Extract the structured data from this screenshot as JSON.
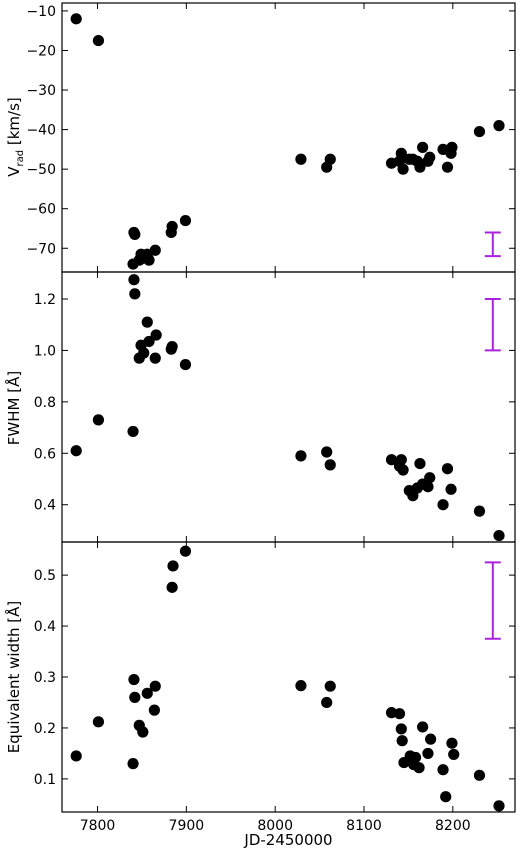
{
  "figure": {
    "xlabel": "JD-2450000",
    "xlim": [
      7760,
      8270
    ],
    "xticks": [
      7800,
      7900,
      8000,
      8100,
      8200
    ],
    "point_color": "#000000",
    "errorbar_color": "#aa22dd"
  },
  "chart_data": [
    {
      "type": "scatter",
      "ylabel": "V",
      "ylabel_sub": "rad",
      "ylabel_unit": " [km/s]",
      "ylim": [
        -76,
        -8
      ],
      "yticks": [
        -70,
        -60,
        -50,
        -40,
        -30,
        -20,
        -10
      ],
      "typical_error": {
        "x": 8245,
        "low": -72,
        "high": -66
      },
      "x": [
        7776,
        7801,
        7840,
        7841,
        7842,
        7847,
        7849,
        7852,
        7856,
        7858,
        7865,
        7883,
        7884,
        7899,
        8029,
        8058,
        8062,
        8131,
        8140,
        8142,
        8144,
        8151,
        8155,
        8160,
        8163,
        8166,
        8172,
        8174,
        8189,
        8194,
        8198,
        8199,
        8230,
        8252
      ],
      "y": [
        -12,
        -17.5,
        -74,
        -66,
        -66.5,
        -73,
        -71.5,
        -72.5,
        -71.5,
        -73,
        -70.5,
        -66,
        -64.5,
        -63,
        -47.5,
        -49.5,
        -47.5,
        -48.5,
        -48,
        -46,
        -50,
        -47.5,
        -47.5,
        -48,
        -49.5,
        -44.5,
        -48,
        -47,
        -45,
        -49.5,
        -46,
        -44.5,
        -40.5,
        -39
      ]
    },
    {
      "type": "scatter",
      "ylabel": "FWHM [Å]",
      "ylim": [
        0.255,
        1.305
      ],
      "yticks": [
        0.4,
        0.6,
        0.8,
        1.0,
        1.2
      ],
      "typical_error": {
        "x": 8245,
        "low": 1.0,
        "high": 1.2
      },
      "x": [
        7776,
        7801,
        7840,
        7841,
        7842,
        7847,
        7849,
        7852,
        7856,
        7858,
        7865,
        7866,
        7883,
        7884,
        7899,
        8029,
        8058,
        8062,
        8131,
        8140,
        8142,
        8144,
        8151,
        8155,
        8160,
        8163,
        8166,
        8172,
        8174,
        8189,
        8194,
        8198,
        8230,
        8252
      ],
      "y": [
        0.61,
        0.73,
        0.685,
        1.275,
        1.22,
        0.97,
        1.02,
        0.99,
        1.11,
        1.035,
        0.97,
        1.06,
        1.005,
        1.015,
        0.945,
        0.59,
        0.605,
        0.555,
        0.575,
        0.55,
        0.575,
        0.535,
        0.455,
        0.435,
        0.465,
        0.56,
        0.48,
        0.47,
        0.505,
        0.4,
        0.54,
        0.46,
        0.375,
        0.28
      ]
    },
    {
      "type": "scatter",
      "ylabel": "Equivalent width [Å]",
      "ylim": [
        0.035,
        0.565
      ],
      "yticks": [
        0.1,
        0.2,
        0.3,
        0.4,
        0.5
      ],
      "typical_error": {
        "x": 8245,
        "low": 0.375,
        "high": 0.525
      },
      "x": [
        7776,
        7801,
        7840,
        7841,
        7842,
        7847,
        7851,
        7856,
        7864,
        7865,
        7884,
        7885,
        7899,
        8029,
        8058,
        8062,
        8131,
        8140,
        8142,
        8143,
        8145,
        8152,
        8156,
        8158,
        8162,
        8166,
        8172,
        8175,
        8189,
        8192,
        8199,
        8201,
        8230,
        8252
      ],
      "y": [
        0.145,
        0.212,
        0.13,
        0.295,
        0.26,
        0.205,
        0.192,
        0.268,
        0.235,
        0.282,
        0.476,
        0.518,
        0.547,
        0.283,
        0.25,
        0.282,
        0.23,
        0.228,
        0.198,
        0.175,
        0.132,
        0.145,
        0.128,
        0.142,
        0.122,
        0.202,
        0.15,
        0.178,
        0.118,
        0.065,
        0.17,
        0.148,
        0.107,
        0.047
      ]
    }
  ]
}
